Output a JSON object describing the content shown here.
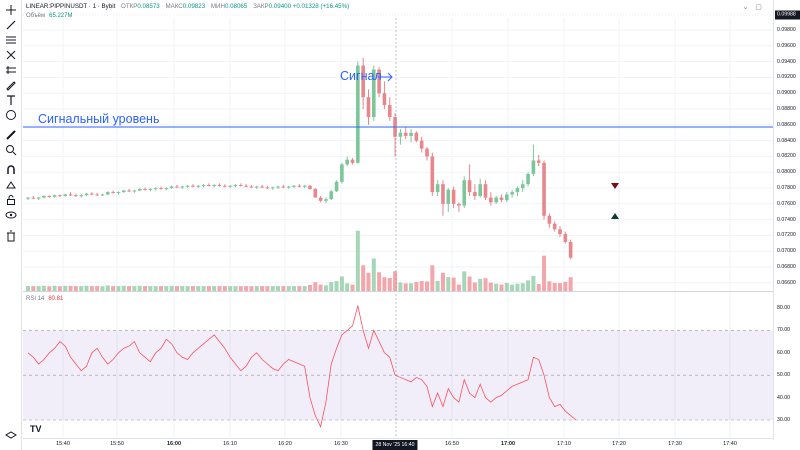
{
  "legend": {
    "symbol": "LINEAR:PIPPINUSDT · 1 · Bybit",
    "open_label": "ОТКР",
    "open_value": "0.08573",
    "high_label": "МАКС",
    "high_value": "0.09823",
    "low_label": "МИН",
    "low_value": "0.08065",
    "close_label": "ЗАКР",
    "close_value": "0.09400 +0.01328 (+16.45%)",
    "volume_label": "Объём",
    "volume_value": "65.227M",
    "rsi_label": "RSI 14",
    "rsi_value": "80.81"
  },
  "annotations": {
    "signal": "Сигнал",
    "signal_level": "Сигнальный уровень"
  },
  "tv_logo": "TV",
  "price_axis": {
    "current": "0.09988",
    "ticks": [
      "0.09800",
      "0.09600",
      "0.09400",
      "0.09200",
      "0.09000",
      "0.08800",
      "0.08600",
      "0.08400",
      "0.08200",
      "0.08000",
      "0.07800",
      "0.07600",
      "0.07400",
      "0.07200",
      "0.07000",
      "0.06800",
      "0.06600"
    ],
    "rsi_ticks": [
      "80.00",
      "70.00",
      "60.00",
      "50.00",
      "40.00",
      "30.00"
    ]
  },
  "time_axis": {
    "ticks": [
      "15:40",
      "15:50",
      "16:00",
      "16:10",
      "16:20",
      "16:30",
      "16:50",
      "17:00",
      "17:10",
      "17:20",
      "17:30",
      "17:40"
    ],
    "current": "28 Nov '25    16:40"
  },
  "colors": {
    "up": "#a5d6b6",
    "up_strong": "#7cc79a",
    "down": "#f4a6aa",
    "down_strong": "#e8868c",
    "signal_line": "#2962ff",
    "rsi_line": "#f7525f",
    "rsi_band": "#7e57c2"
  },
  "icons": [
    "crosshair-icon",
    "trendline-icon",
    "fib-icon",
    "pitchfork-icon",
    "brush-icon",
    "text-icon",
    "emoji-icon",
    "ruler-icon",
    "zoom-icon",
    "magnet-icon",
    "lock-drawings-icon",
    "unlock-icon",
    "eye-icon",
    "trash-icon"
  ],
  "chart_data": {
    "type": "candlestick",
    "x_time_start": "15:34",
    "interval": "1m",
    "signal_level": 0.0859,
    "signal_time": "16:40",
    "ohlc": [
      [
        0.0767,
        0.0769,
        0.0765,
        0.0768
      ],
      [
        0.0768,
        0.077,
        0.0766,
        0.0767
      ],
      [
        0.0767,
        0.0769,
        0.0765,
        0.0768
      ],
      [
        0.0768,
        0.0771,
        0.0767,
        0.077
      ],
      [
        0.077,
        0.0771,
        0.0768,
        0.0769
      ],
      [
        0.0769,
        0.0772,
        0.0768,
        0.0771
      ],
      [
        0.0771,
        0.0772,
        0.0769,
        0.077
      ],
      [
        0.077,
        0.0773,
        0.0769,
        0.0772
      ],
      [
        0.0772,
        0.0775,
        0.077,
        0.0771
      ],
      [
        0.0771,
        0.0773,
        0.0769,
        0.077
      ],
      [
        0.077,
        0.0772,
        0.0768,
        0.0771
      ],
      [
        0.0771,
        0.0774,
        0.077,
        0.0773
      ],
      [
        0.0773,
        0.0775,
        0.0771,
        0.0772
      ],
      [
        0.0772,
        0.0774,
        0.077,
        0.0771
      ],
      [
        0.0771,
        0.0773,
        0.077,
        0.0772
      ],
      [
        0.0772,
        0.0776,
        0.0771,
        0.0775
      ],
      [
        0.0775,
        0.0777,
        0.0773,
        0.0774
      ],
      [
        0.0774,
        0.0776,
        0.0772,
        0.0775
      ],
      [
        0.0775,
        0.0778,
        0.0774,
        0.0777
      ],
      [
        0.0777,
        0.0779,
        0.0775,
        0.0776
      ],
      [
        0.0776,
        0.0778,
        0.0774,
        0.0777
      ],
      [
        0.0777,
        0.078,
        0.0776,
        0.0779
      ],
      [
        0.0779,
        0.0781,
        0.0777,
        0.0778
      ],
      [
        0.0778,
        0.078,
        0.0776,
        0.0779
      ],
      [
        0.0779,
        0.0781,
        0.0777,
        0.078
      ],
      [
        0.078,
        0.0782,
        0.0778,
        0.0779
      ],
      [
        0.0779,
        0.0781,
        0.0777,
        0.078
      ],
      [
        0.078,
        0.0783,
        0.0779,
        0.0782
      ],
      [
        0.0782,
        0.0784,
        0.078,
        0.0781
      ],
      [
        0.0781,
        0.0783,
        0.0779,
        0.0782
      ],
      [
        0.0782,
        0.0784,
        0.078,
        0.0783
      ],
      [
        0.0783,
        0.0785,
        0.0781,
        0.0782
      ],
      [
        0.0782,
        0.0784,
        0.078,
        0.0783
      ],
      [
        0.0783,
        0.0785,
        0.0781,
        0.0784
      ],
      [
        0.0784,
        0.0786,
        0.0782,
        0.0783
      ],
      [
        0.0783,
        0.0785,
        0.0781,
        0.0784
      ],
      [
        0.0784,
        0.0786,
        0.0782,
        0.0783
      ],
      [
        0.0783,
        0.0785,
        0.0781,
        0.0782
      ],
      [
        0.0782,
        0.0784,
        0.078,
        0.0783
      ],
      [
        0.0783,
        0.0785,
        0.0781,
        0.0784
      ],
      [
        0.0784,
        0.0786,
        0.0782,
        0.0783
      ],
      [
        0.0783,
        0.0785,
        0.0781,
        0.0782
      ],
      [
        0.0782,
        0.0784,
        0.078,
        0.0781
      ],
      [
        0.0781,
        0.0783,
        0.0779,
        0.0782
      ],
      [
        0.0782,
        0.0784,
        0.078,
        0.0781
      ],
      [
        0.0781,
        0.0783,
        0.0779,
        0.078
      ],
      [
        0.078,
        0.0782,
        0.0778,
        0.0781
      ],
      [
        0.0781,
        0.0783,
        0.0779,
        0.0782
      ],
      [
        0.0782,
        0.0784,
        0.078,
        0.0781
      ],
      [
        0.0781,
        0.0783,
        0.0779,
        0.0782
      ],
      [
        0.0782,
        0.0784,
        0.078,
        0.0783
      ],
      [
        0.0783,
        0.0785,
        0.0781,
        0.0782
      ],
      [
        0.0782,
        0.0784,
        0.078,
        0.0783
      ],
      [
        0.0783,
        0.0784,
        0.0778,
        0.0779
      ],
      [
        0.0779,
        0.078,
        0.077,
        0.0768
      ],
      [
        0.0768,
        0.077,
        0.0762,
        0.0764
      ],
      [
        0.0764,
        0.0768,
        0.0761,
        0.0766
      ],
      [
        0.0766,
        0.0778,
        0.0765,
        0.0776
      ],
      [
        0.0776,
        0.079,
        0.0775,
        0.0788
      ],
      [
        0.0788,
        0.0812,
        0.0786,
        0.081
      ],
      [
        0.081,
        0.082,
        0.0808,
        0.0816
      ],
      [
        0.0816,
        0.0818,
        0.081,
        0.0812
      ],
      [
        0.0812,
        0.094,
        0.0811,
        0.0935
      ],
      [
        0.0935,
        0.0945,
        0.088,
        0.0895
      ],
      [
        0.0895,
        0.0905,
        0.086,
        0.087
      ],
      [
        0.087,
        0.0935,
        0.0865,
        0.093
      ],
      [
        0.093,
        0.0933,
        0.0895,
        0.09
      ],
      [
        0.09,
        0.0915,
        0.088,
        0.0885
      ],
      [
        0.0885,
        0.0895,
        0.0865,
        0.087
      ],
      [
        0.087,
        0.0875,
        0.082,
        0.0845
      ],
      [
        0.0845,
        0.0855,
        0.0835,
        0.085
      ],
      [
        0.085,
        0.0858,
        0.0842,
        0.0846
      ],
      [
        0.0846,
        0.0855,
        0.0838,
        0.085
      ],
      [
        0.085,
        0.0852,
        0.0838,
        0.084
      ],
      [
        0.084,
        0.0845,
        0.0825,
        0.083
      ],
      [
        0.083,
        0.0832,
        0.0815,
        0.082
      ],
      [
        0.082,
        0.0825,
        0.077,
        0.0775
      ],
      [
        0.0775,
        0.079,
        0.077,
        0.0785
      ],
      [
        0.0785,
        0.079,
        0.0745,
        0.076
      ],
      [
        0.076,
        0.078,
        0.075,
        0.0778
      ],
      [
        0.0778,
        0.0782,
        0.0755,
        0.076
      ],
      [
        0.076,
        0.0762,
        0.075,
        0.0758
      ],
      [
        0.0758,
        0.0795,
        0.0755,
        0.079
      ],
      [
        0.079,
        0.081,
        0.077,
        0.0775
      ],
      [
        0.0775,
        0.0785,
        0.0765,
        0.077
      ],
      [
        0.077,
        0.0792,
        0.0768,
        0.0785
      ],
      [
        0.0785,
        0.079,
        0.0765,
        0.0768
      ],
      [
        0.0768,
        0.0775,
        0.0758,
        0.0762
      ],
      [
        0.0762,
        0.077,
        0.076,
        0.0768
      ],
      [
        0.0768,
        0.0772,
        0.0762,
        0.0765
      ],
      [
        0.0765,
        0.0775,
        0.0762,
        0.0772
      ],
      [
        0.0772,
        0.0778,
        0.0768,
        0.0775
      ],
      [
        0.0775,
        0.0782,
        0.077,
        0.078
      ],
      [
        0.078,
        0.079,
        0.0775,
        0.0785
      ],
      [
        0.0785,
        0.08,
        0.0782,
        0.0798
      ],
      [
        0.0798,
        0.0835,
        0.0795,
        0.0815
      ],
      [
        0.0815,
        0.0822,
        0.0808,
        0.0812
      ],
      [
        0.0812,
        0.0815,
        0.074,
        0.0745
      ],
      [
        0.0745,
        0.0748,
        0.073,
        0.0735
      ],
      [
        0.0735,
        0.0738,
        0.0725,
        0.0728
      ],
      [
        0.0728,
        0.0732,
        0.0718,
        0.0722
      ],
      [
        0.0722,
        0.0725,
        0.071,
        0.0712
      ],
      [
        0.0712,
        0.0715,
        0.069,
        0.0692
      ]
    ],
    "volume_level": "low baseline with spikes at 16:40 and 17:21",
    "rsi": [
      60,
      58,
      55,
      57,
      60,
      62,
      65,
      63,
      58,
      55,
      52,
      54,
      60,
      62,
      58,
      55,
      57,
      60,
      62,
      63,
      65,
      60,
      58,
      56,
      60,
      62,
      66,
      64,
      60,
      58,
      57,
      60,
      62,
      64,
      66,
      68,
      65,
      62,
      58,
      55,
      52,
      54,
      58,
      60,
      57,
      55,
      53,
      52,
      55,
      57,
      56,
      55,
      54,
      40,
      32,
      27,
      38,
      55,
      62,
      68,
      70,
      72,
      81,
      70,
      62,
      70,
      65,
      60,
      58,
      50,
      49,
      48,
      47,
      49,
      48,
      45,
      36,
      42,
      36,
      44,
      40,
      38,
      48,
      42,
      40,
      46,
      40,
      38,
      40,
      41,
      43,
      45,
      46,
      47,
      48,
      58,
      57,
      50,
      40,
      36,
      37,
      34,
      32,
      30
    ],
    "rsi_levels": [
      70,
      50,
      30
    ],
    "ylim": [
      0.065,
      0.0999
    ],
    "rsi_ylim": [
      25,
      83
    ]
  }
}
